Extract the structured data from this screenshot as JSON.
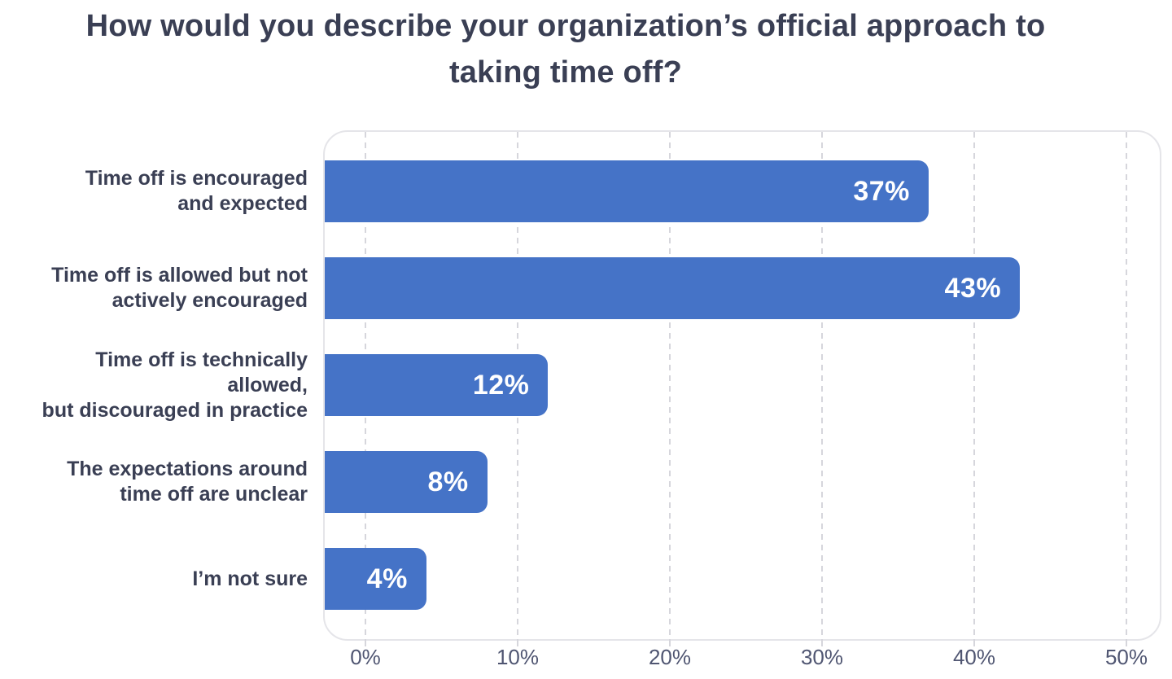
{
  "title": "How would you describe your organization’s official approach to taking time off?",
  "colors": {
    "background": "#FFFFFF",
    "bar": "#4573C7",
    "title_text": "#3A3F54",
    "category_text": "#3A3F54",
    "axis_text": "#505672",
    "value_text": "#FFFFFF",
    "gridline": "#D6D6DC",
    "plot_border": "#E5E5E9"
  },
  "chart_data": {
    "type": "bar",
    "orientation": "horizontal",
    "title": "How would you describe your organization’s official approach to taking time off?",
    "xlabel": "",
    "ylabel": "",
    "categories": [
      "Time off is encouraged and expected",
      "Time off is allowed but not actively encouraged",
      "Time off is technically allowed, but discouraged in practice",
      "The expectations around time off are unclear",
      "I’m not sure"
    ],
    "category_label_lines": [
      [
        "Time off is encouraged",
        "and expected"
      ],
      [
        "Time off is allowed but not",
        "actively encouraged"
      ],
      [
        "Time off is technically allowed,",
        "but discouraged in practice"
      ],
      [
        "The expectations around",
        "time off are unclear"
      ],
      [
        "I’m not sure"
      ]
    ],
    "values": [
      37,
      43,
      12,
      8,
      4
    ],
    "value_labels": [
      "37%",
      "43%",
      "12%",
      "8%",
      "4%"
    ],
    "value_label_position": "inside-right",
    "x_axis": {
      "ticks": [
        "0%",
        "10%",
        "20%",
        "30%",
        "40%",
        "50%"
      ],
      "tick_values": [
        0,
        10,
        20,
        30,
        40,
        50
      ],
      "min": 0,
      "max": 50,
      "gridlines": "dashed-vertical"
    },
    "legend": null
  }
}
